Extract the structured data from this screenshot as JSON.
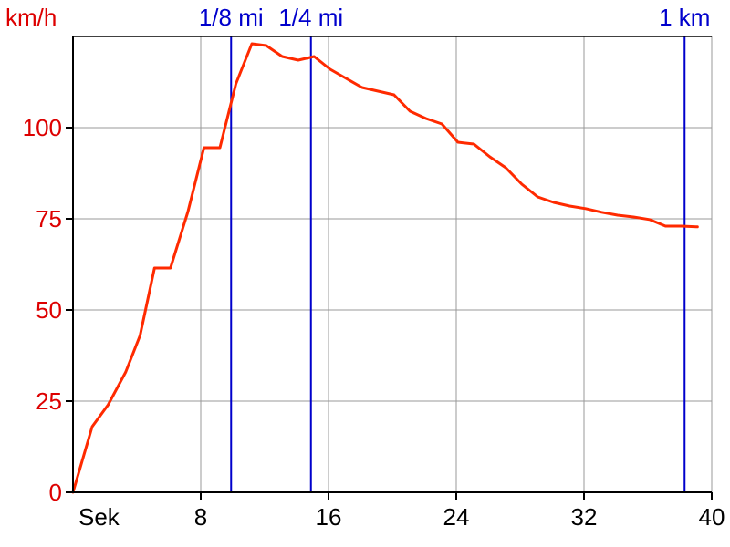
{
  "chart_data": {
    "type": "line",
    "title": "",
    "xlabel": "Sek",
    "ylabel": "km/h",
    "xlim": [
      0,
      40
    ],
    "ylim": [
      0,
      125
    ],
    "x_ticks": [
      {
        "value": 8,
        "label": "8"
      },
      {
        "value": 16,
        "label": "16"
      },
      {
        "value": 24,
        "label": "24"
      },
      {
        "value": 32,
        "label": "32"
      },
      {
        "value": 40,
        "label": "40"
      }
    ],
    "y_ticks": [
      {
        "value": 0,
        "label": "0"
      },
      {
        "value": 25,
        "label": "25"
      },
      {
        "value": 50,
        "label": "50"
      },
      {
        "value": 75,
        "label": "75"
      },
      {
        "value": 100,
        "label": "100"
      }
    ],
    "grid": true,
    "markers": [
      {
        "label": "1/8 mi",
        "x": 9.9
      },
      {
        "label": "1/4 mi",
        "x": 14.9
      },
      {
        "label": "1 km",
        "x": 38.3
      }
    ],
    "series": [
      {
        "name": "",
        "color": "#ff2a00",
        "x": [
          0,
          1.2,
          2.2,
          3.3,
          4.2,
          5.1,
          6.1,
          7.2,
          8.2,
          9.2,
          10.2,
          11.2,
          12.1,
          13.1,
          14.1,
          15.1,
          16.1,
          17.1,
          18.1,
          19.1,
          20.1,
          21.1,
          22.1,
          23.1,
          24.1,
          25.1,
          26.1,
          27.1,
          28.1,
          29.1,
          30.1,
          31.1,
          32.1,
          33.1,
          34.1,
          35.1,
          36.1,
          37.1,
          38.1,
          39.1
        ],
        "y": [
          0,
          18,
          24,
          33,
          43,
          61.5,
          61.5,
          77,
          94.5,
          94.5,
          112,
          123,
          122.5,
          119.5,
          118.5,
          119.5,
          116,
          113.5,
          111,
          110,
          109,
          104.5,
          102.5,
          101,
          96,
          95.5,
          92,
          89,
          84.5,
          81,
          79.5,
          78.5,
          77.8,
          76.8,
          76,
          75.5,
          74.8,
          73,
          73,
          72.8
        ]
      }
    ],
    "colors": {
      "value_axis": "#dd0000",
      "marker": "#0000cc",
      "grid": "#999999",
      "axis": "#000000",
      "tick_text": "#000000"
    }
  }
}
